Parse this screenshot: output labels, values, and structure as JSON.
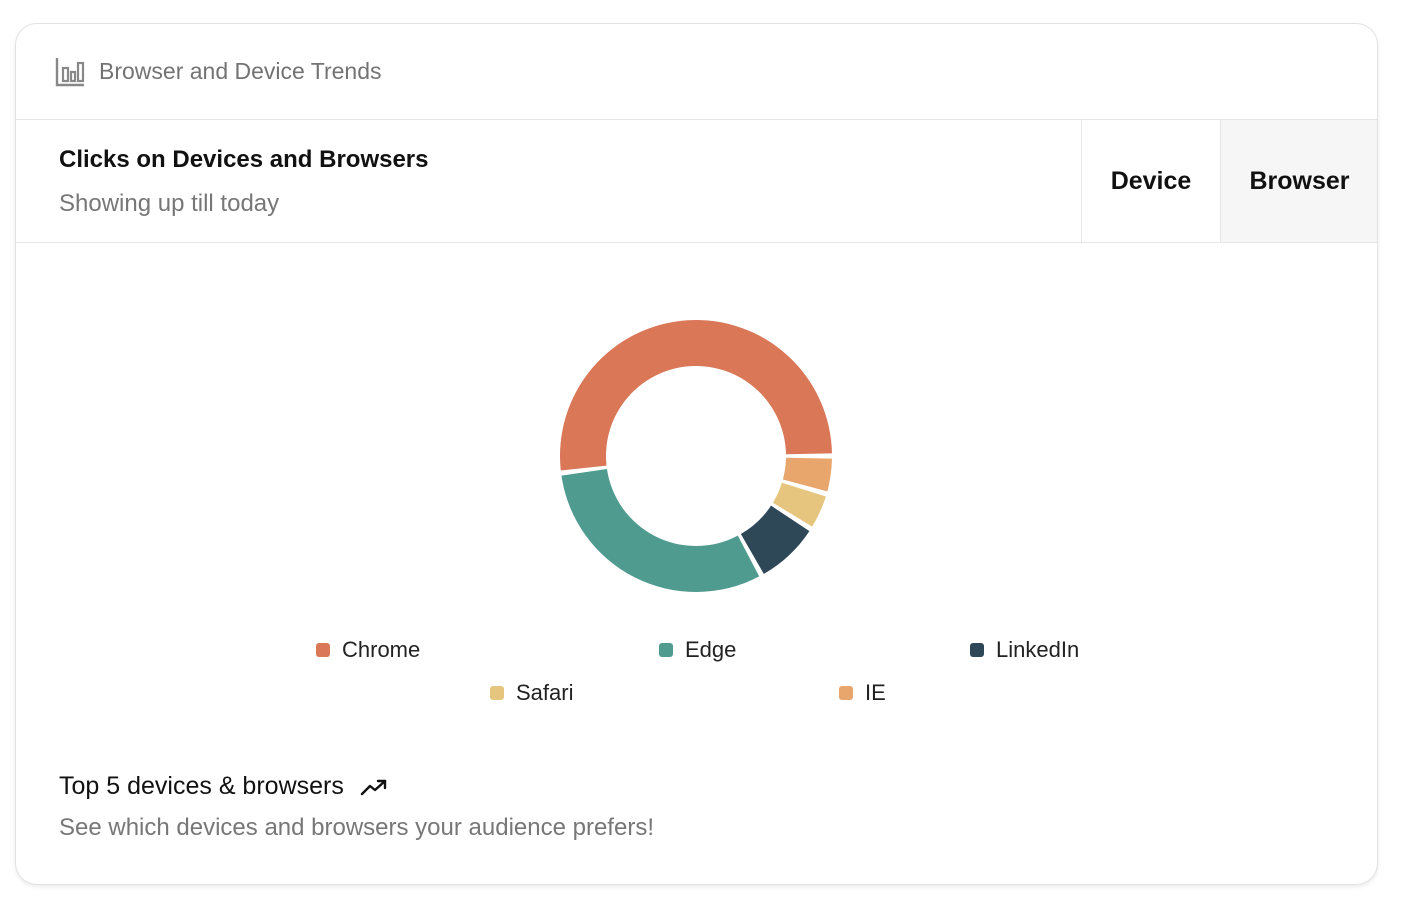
{
  "header": {
    "title": "Browser and Device Trends",
    "icon": "bar-chart-icon"
  },
  "subheader": {
    "heading": "Clicks on Devices and Browsers",
    "subtitle": "Showing up till today"
  },
  "tabs": [
    {
      "label": "Device",
      "selected": false
    },
    {
      "label": "Browser",
      "selected": true
    }
  ],
  "chart_data": {
    "type": "pie",
    "variant": "donut",
    "categories": [
      "Chrome",
      "Edge",
      "LinkedIn",
      "Safari",
      "IE"
    ],
    "values": [
      52,
      31,
      8,
      4.5,
      4.5
    ],
    "colors": [
      "#d97757",
      "#4f9b8f",
      "#2f4858",
      "#e6c57e",
      "#e8a56c"
    ],
    "legend_position": "bottom"
  },
  "footer": {
    "title": "Top 5 devices & browsers",
    "title_icon": "trending-up-icon",
    "subtitle": "See which devices and browsers your audience prefers!"
  }
}
